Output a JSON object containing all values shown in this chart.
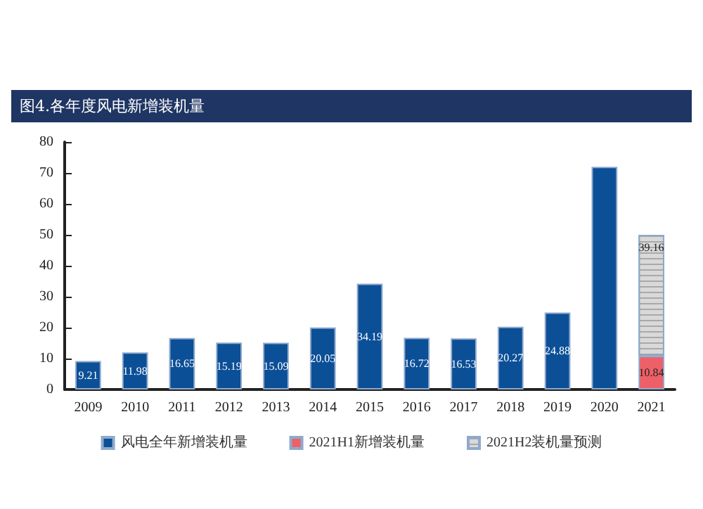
{
  "chart_data": {
    "type": "bar",
    "title": "图4.各年度风电新增装机量",
    "categories": [
      "2009",
      "2010",
      "2011",
      "2012",
      "2013",
      "2014",
      "2015",
      "2016",
      "2017",
      "2018",
      "2019",
      "2020",
      "2021"
    ],
    "series": [
      {
        "name": "风电全年新增装机量",
        "color": "#0b4f97",
        "values": [
          9.21,
          11.98,
          16.65,
          15.19,
          15.09,
          20.05,
          34.19,
          16.72,
          16.53,
          20.27,
          24.88,
          72,
          null
        ],
        "value_labels": [
          "9.21",
          "11.98",
          "16.65",
          "15.19",
          "15.09",
          "20.05",
          "34.19",
          "16.72",
          "16.53",
          "20.27",
          "24.88",
          null,
          null
        ]
      },
      {
        "name": "2021H1新增装机量",
        "color": "#ee6068",
        "values": [
          null,
          null,
          null,
          null,
          null,
          null,
          null,
          null,
          null,
          null,
          null,
          null,
          10.84
        ],
        "value_labels": [
          null,
          null,
          null,
          null,
          null,
          null,
          null,
          null,
          null,
          null,
          null,
          null,
          "10.84"
        ]
      },
      {
        "name": "2021H2装机量预测",
        "color": "#d9d9d9",
        "values": [
          null,
          null,
          null,
          null,
          null,
          null,
          null,
          null,
          null,
          null,
          null,
          null,
          39.16
        ],
        "value_labels": [
          null,
          null,
          null,
          null,
          null,
          null,
          null,
          null,
          null,
          null,
          null,
          null,
          "39.16"
        ]
      }
    ],
    "stacked": true,
    "ylim": [
      0,
      80
    ],
    "yticks": [
      0,
      10,
      20,
      30,
      40,
      50,
      60,
      70,
      80
    ],
    "grid": false,
    "legend": "bottom"
  }
}
